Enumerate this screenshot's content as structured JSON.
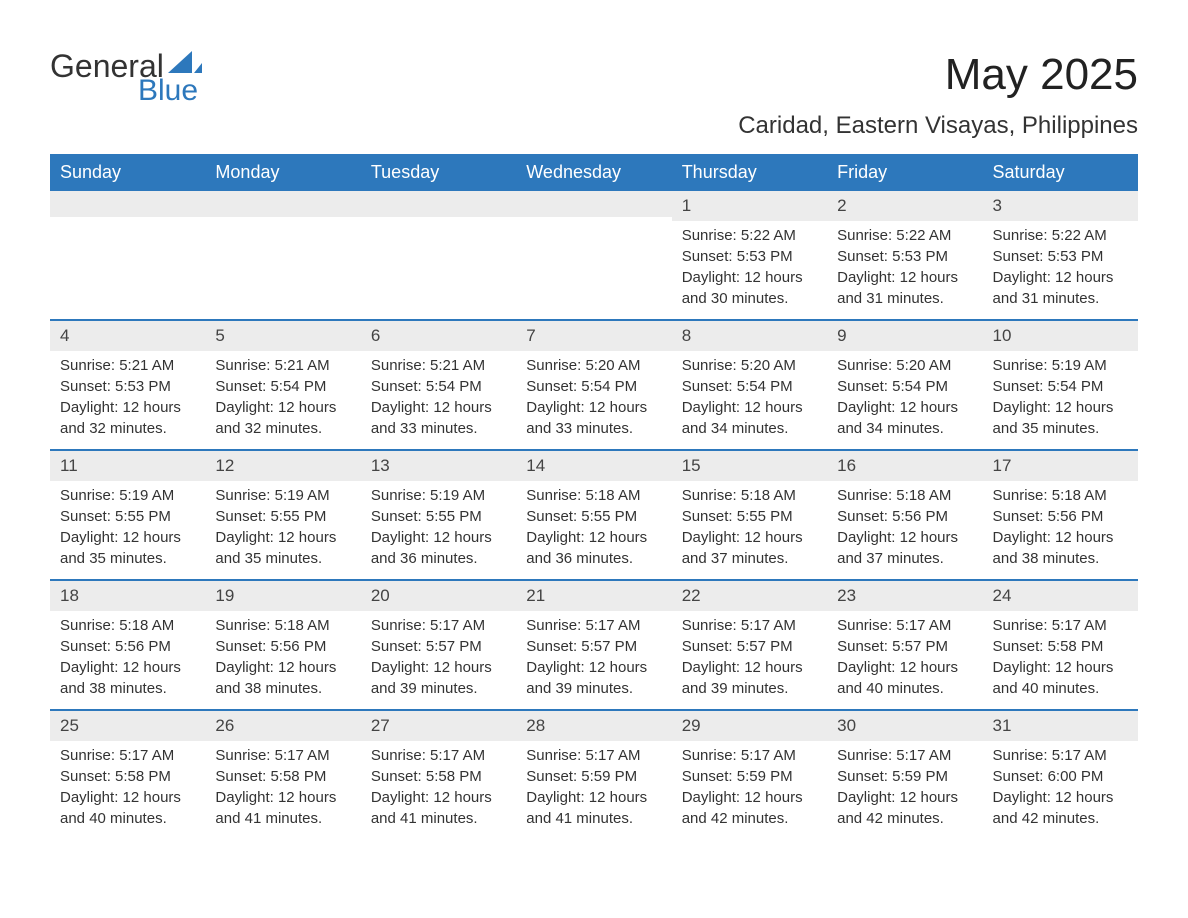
{
  "logo": {
    "text_general": "General",
    "text_blue": "Blue",
    "sail_color": "#2d78bc"
  },
  "title": "May 2025",
  "location": "Caridad, Eastern Visayas, Philippines",
  "colors": {
    "header_bg": "#2d78bc",
    "header_text": "#ffffff",
    "daynum_bg": "#ececec",
    "text": "#333333",
    "divider": "#2d78bc",
    "background": "#ffffff"
  },
  "days_of_week": [
    "Sunday",
    "Monday",
    "Tuesday",
    "Wednesday",
    "Thursday",
    "Friday",
    "Saturday"
  ],
  "first_weekday_index": 4,
  "days": [
    {
      "n": 1,
      "sunrise": "5:22 AM",
      "sunset": "5:53 PM",
      "daylight": "12 hours and 30 minutes."
    },
    {
      "n": 2,
      "sunrise": "5:22 AM",
      "sunset": "5:53 PM",
      "daylight": "12 hours and 31 minutes."
    },
    {
      "n": 3,
      "sunrise": "5:22 AM",
      "sunset": "5:53 PM",
      "daylight": "12 hours and 31 minutes."
    },
    {
      "n": 4,
      "sunrise": "5:21 AM",
      "sunset": "5:53 PM",
      "daylight": "12 hours and 32 minutes."
    },
    {
      "n": 5,
      "sunrise": "5:21 AM",
      "sunset": "5:54 PM",
      "daylight": "12 hours and 32 minutes."
    },
    {
      "n": 6,
      "sunrise": "5:21 AM",
      "sunset": "5:54 PM",
      "daylight": "12 hours and 33 minutes."
    },
    {
      "n": 7,
      "sunrise": "5:20 AM",
      "sunset": "5:54 PM",
      "daylight": "12 hours and 33 minutes."
    },
    {
      "n": 8,
      "sunrise": "5:20 AM",
      "sunset": "5:54 PM",
      "daylight": "12 hours and 34 minutes."
    },
    {
      "n": 9,
      "sunrise": "5:20 AM",
      "sunset": "5:54 PM",
      "daylight": "12 hours and 34 minutes."
    },
    {
      "n": 10,
      "sunrise": "5:19 AM",
      "sunset": "5:54 PM",
      "daylight": "12 hours and 35 minutes."
    },
    {
      "n": 11,
      "sunrise": "5:19 AM",
      "sunset": "5:55 PM",
      "daylight": "12 hours and 35 minutes."
    },
    {
      "n": 12,
      "sunrise": "5:19 AM",
      "sunset": "5:55 PM",
      "daylight": "12 hours and 35 minutes."
    },
    {
      "n": 13,
      "sunrise": "5:19 AM",
      "sunset": "5:55 PM",
      "daylight": "12 hours and 36 minutes."
    },
    {
      "n": 14,
      "sunrise": "5:18 AM",
      "sunset": "5:55 PM",
      "daylight": "12 hours and 36 minutes."
    },
    {
      "n": 15,
      "sunrise": "5:18 AM",
      "sunset": "5:55 PM",
      "daylight": "12 hours and 37 minutes."
    },
    {
      "n": 16,
      "sunrise": "5:18 AM",
      "sunset": "5:56 PM",
      "daylight": "12 hours and 37 minutes."
    },
    {
      "n": 17,
      "sunrise": "5:18 AM",
      "sunset": "5:56 PM",
      "daylight": "12 hours and 38 minutes."
    },
    {
      "n": 18,
      "sunrise": "5:18 AM",
      "sunset": "5:56 PM",
      "daylight": "12 hours and 38 minutes."
    },
    {
      "n": 19,
      "sunrise": "5:18 AM",
      "sunset": "5:56 PM",
      "daylight": "12 hours and 38 minutes."
    },
    {
      "n": 20,
      "sunrise": "5:17 AM",
      "sunset": "5:57 PM",
      "daylight": "12 hours and 39 minutes."
    },
    {
      "n": 21,
      "sunrise": "5:17 AM",
      "sunset": "5:57 PM",
      "daylight": "12 hours and 39 minutes."
    },
    {
      "n": 22,
      "sunrise": "5:17 AM",
      "sunset": "5:57 PM",
      "daylight": "12 hours and 39 minutes."
    },
    {
      "n": 23,
      "sunrise": "5:17 AM",
      "sunset": "5:57 PM",
      "daylight": "12 hours and 40 minutes."
    },
    {
      "n": 24,
      "sunrise": "5:17 AM",
      "sunset": "5:58 PM",
      "daylight": "12 hours and 40 minutes."
    },
    {
      "n": 25,
      "sunrise": "5:17 AM",
      "sunset": "5:58 PM",
      "daylight": "12 hours and 40 minutes."
    },
    {
      "n": 26,
      "sunrise": "5:17 AM",
      "sunset": "5:58 PM",
      "daylight": "12 hours and 41 minutes."
    },
    {
      "n": 27,
      "sunrise": "5:17 AM",
      "sunset": "5:58 PM",
      "daylight": "12 hours and 41 minutes."
    },
    {
      "n": 28,
      "sunrise": "5:17 AM",
      "sunset": "5:59 PM",
      "daylight": "12 hours and 41 minutes."
    },
    {
      "n": 29,
      "sunrise": "5:17 AM",
      "sunset": "5:59 PM",
      "daylight": "12 hours and 42 minutes."
    },
    {
      "n": 30,
      "sunrise": "5:17 AM",
      "sunset": "5:59 PM",
      "daylight": "12 hours and 42 minutes."
    },
    {
      "n": 31,
      "sunrise": "5:17 AM",
      "sunset": "6:00 PM",
      "daylight": "12 hours and 42 minutes."
    }
  ],
  "labels": {
    "sunrise": "Sunrise:",
    "sunset": "Sunset:",
    "daylight": "Daylight:"
  }
}
